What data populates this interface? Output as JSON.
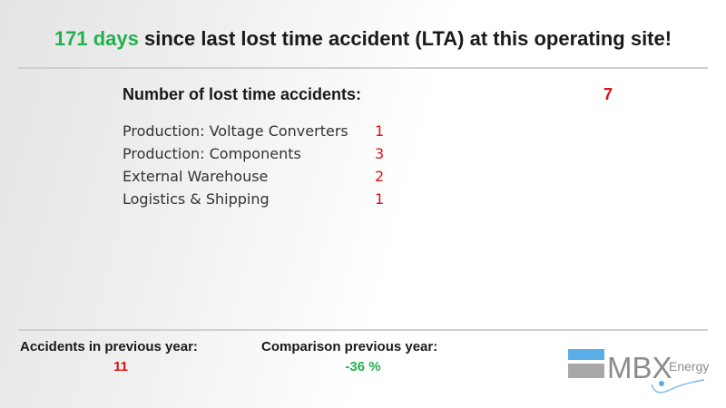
{
  "header": {
    "days_highlight": "171 days",
    "title_rest": " since last lost time accident (LTA) at this operating site!"
  },
  "summary": {
    "total_label": "Number of lost time accidents:",
    "total_value": "7"
  },
  "breakdown": [
    {
      "label": "Production: Voltage Converters",
      "value": "1"
    },
    {
      "label": "Production: Components",
      "value": "3"
    },
    {
      "label": "External Warehouse",
      "value": "2"
    },
    {
      "label": "Logistics & Shipping",
      "value": "1"
    }
  ],
  "footer": {
    "previous_year_label": "Accidents in previous year:",
    "previous_year_value": "11",
    "comparison_label": "Comparison previous year:",
    "comparison_value": "-36 %"
  },
  "logo": {
    "brand_main": "MBX",
    "brand_sub": "Energy"
  },
  "colors": {
    "positive": "#22b14c",
    "negative": "#e01010",
    "logo_blue": "#5aaee8",
    "logo_gray": "#a8a8a8",
    "divider": "#d0d0d0"
  }
}
